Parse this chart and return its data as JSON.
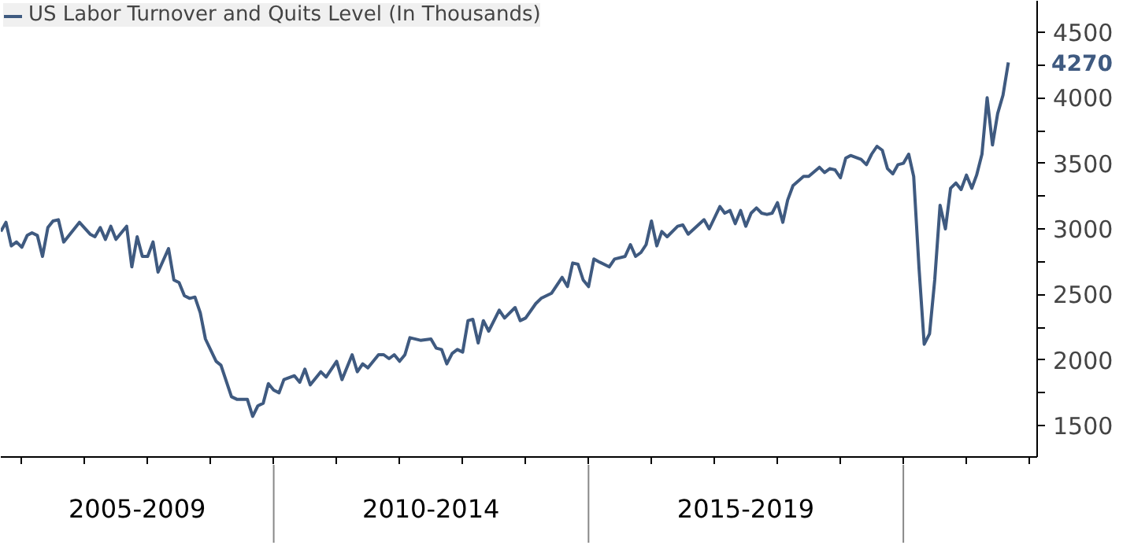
{
  "chart_data": {
    "type": "line",
    "x": [
      "2005-09",
      "2005-10",
      "2005-11",
      "2005-12",
      "2006-01",
      "2006-02",
      "2006-03",
      "2006-04",
      "2006-05",
      "2006-06",
      "2006-07",
      "2006-08",
      "2006-09",
      "2006-12",
      "2007-02",
      "2007-03",
      "2007-04",
      "2007-05",
      "2007-06",
      "2007-07",
      "2007-09",
      "2007-10",
      "2007-11",
      "2007-12",
      "2008-01",
      "2008-02",
      "2008-03",
      "2008-05",
      "2008-06",
      "2008-07",
      "2008-08",
      "2008-09",
      "2008-10",
      "2008-11",
      "2008-12",
      "2009-02",
      "2009-03",
      "2009-05",
      "2009-06",
      "2009-08",
      "2009-09",
      "2009-10",
      "2009-11",
      "2009-12",
      "2010-01",
      "2010-02",
      "2010-03",
      "2010-05",
      "2010-06",
      "2010-07",
      "2010-08",
      "2010-10",
      "2010-11",
      "2011-01",
      "2011-02",
      "2011-04",
      "2011-05",
      "2011-06",
      "2011-07",
      "2011-09",
      "2011-10",
      "2011-11",
      "2011-12",
      "2012-01",
      "2012-02",
      "2012-03",
      "2012-05",
      "2012-07",
      "2012-08",
      "2012-09",
      "2012-10",
      "2012-11",
      "2012-12",
      "2013-01",
      "2013-02",
      "2013-03",
      "2013-04",
      "2013-05",
      "2013-06",
      "2013-08",
      "2013-09",
      "2013-11",
      "2013-12",
      "2014-01",
      "2014-03",
      "2014-04",
      "2014-06",
      "2014-08",
      "2014-09",
      "2014-10",
      "2014-11",
      "2014-12",
      "2015-01",
      "2015-02",
      "2015-03",
      "2015-05",
      "2015-06",
      "2015-08",
      "2015-09",
      "2015-10",
      "2015-11",
      "2015-12",
      "2016-01",
      "2016-02",
      "2016-03",
      "2016-04",
      "2016-06",
      "2016-07",
      "2016-08",
      "2016-11",
      "2016-12",
      "2017-02",
      "2017-03",
      "2017-04",
      "2017-05",
      "2017-06",
      "2017-07",
      "2017-08",
      "2017-09",
      "2017-10",
      "2017-11",
      "2017-12",
      "2018-01",
      "2018-02",
      "2018-03",
      "2018-04",
      "2018-06",
      "2018-07",
      "2018-09",
      "2018-10",
      "2018-11",
      "2018-12",
      "2019-01",
      "2019-02",
      "2019-03",
      "2019-05",
      "2019-06",
      "2019-07",
      "2019-08",
      "2019-09",
      "2019-10",
      "2019-11",
      "2019-12",
      "2020-01",
      "2020-02",
      "2020-03",
      "2020-04",
      "2020-05",
      "2020-06",
      "2020-07",
      "2020-08",
      "2020-09",
      "2020-10",
      "2020-11",
      "2020-12",
      "2021-01",
      "2021-02",
      "2021-03",
      "2021-04",
      "2021-05",
      "2021-06",
      "2021-07",
      "2021-08",
      "2021-09"
    ],
    "series": [
      {
        "name": "US Labor Turnover and Quits Level (In Thousands)",
        "color": "#3f5a80",
        "values": [
          2980,
          3050,
          2870,
          2900,
          2860,
          2950,
          2970,
          2950,
          2790,
          3010,
          3060,
          3070,
          2900,
          3050,
          2960,
          2940,
          3010,
          2920,
          3020,
          2920,
          3020,
          2710,
          2940,
          2790,
          2790,
          2900,
          2670,
          2850,
          2610,
          2590,
          2490,
          2470,
          2480,
          2360,
          2160,
          1990,
          1960,
          1720,
          1700,
          1700,
          1570,
          1650,
          1670,
          1820,
          1770,
          1750,
          1850,
          1880,
          1830,
          1930,
          1810,
          1910,
          1870,
          1990,
          1850,
          2040,
          1910,
          1970,
          1940,
          2040,
          2040,
          2010,
          2040,
          1990,
          2040,
          2170,
          2150,
          2160,
          2090,
          2080,
          1970,
          2050,
          2080,
          2060,
          2300,
          2310,
          2130,
          2300,
          2220,
          2380,
          2320,
          2400,
          2300,
          2320,
          2430,
          2470,
          2510,
          2630,
          2560,
          2740,
          2730,
          2610,
          2560,
          2770,
          2750,
          2710,
          2770,
          2790,
          2880,
          2790,
          2820,
          2880,
          3060,
          2870,
          2980,
          2940,
          3020,
          3030,
          2960,
          3070,
          3000,
          3170,
          3120,
          3140,
          3040,
          3140,
          3020,
          3120,
          3160,
          3120,
          3110,
          3120,
          3200,
          3050,
          3220,
          3330,
          3400,
          3400,
          3470,
          3430,
          3460,
          3450,
          3390,
          3540,
          3560,
          3530,
          3490,
          3570,
          3630,
          3600,
          3460,
          3420,
          3490,
          3500,
          3570,
          3400,
          2700,
          2120,
          2200,
          2610,
          3180,
          3000,
          3310,
          3350,
          3300,
          3410,
          3310,
          3410,
          3570,
          4000,
          3640,
          3880,
          4020,
          4270
        ]
      }
    ],
    "annotations": [
      {
        "text": "4270",
        "x": "2021-09",
        "y": 4270
      }
    ],
    "xlim": [
      "2005-09",
      "2022-02-15"
    ],
    "xticks": [
      {
        "value": "2006-01",
        "label": null
      },
      {
        "value": "2007-01",
        "label": null
      },
      {
        "value": "2007-11",
        "label": "2005-2009"
      },
      {
        "value": "2008-01",
        "label": null
      },
      {
        "value": "2009-01",
        "label": null
      },
      {
        "value": "2010-01",
        "label": null
      },
      {
        "value": "2011-01",
        "label": null
      },
      {
        "value": "2012-01",
        "label": null
      },
      {
        "value": "2012-07",
        "label": "2010-2014"
      },
      {
        "value": "2013-01",
        "label": null
      },
      {
        "value": "2014-01",
        "label": null
      },
      {
        "value": "2015-01",
        "label": null
      },
      {
        "value": "2016-01",
        "label": null
      },
      {
        "value": "2017-01",
        "label": null
      },
      {
        "value": "2017-07",
        "label": "2015-2019"
      },
      {
        "value": "2018-01",
        "label": null
      },
      {
        "value": "2019-01",
        "label": null
      },
      {
        "value": "2020-01",
        "label": null
      },
      {
        "value": "2021-01",
        "label": null
      },
      {
        "value": "2022-01",
        "label": null
      }
    ],
    "ylim": [
      1260,
      4740
    ],
    "yticks": [
      1500,
      {
        "value": 1750,
        "label": null
      },
      2000,
      {
        "value": 2250,
        "label": null
      },
      2500,
      {
        "value": 2750,
        "label": null
      },
      3000,
      {
        "value": 3250,
        "label": null
      },
      3500,
      {
        "value": 3750,
        "label": null
      },
      4000,
      {
        "value": 4250,
        "label": null
      },
      4500
    ],
    "legend": "top left",
    "grid": false,
    "line_style": "solid",
    "marker": "none"
  }
}
